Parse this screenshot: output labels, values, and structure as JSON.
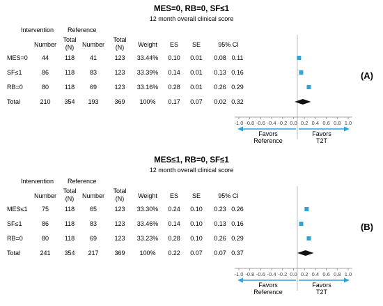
{
  "columns": {
    "intervention": "Intervention",
    "reference": "Reference",
    "number": "Number",
    "total_line1": "Total",
    "total_line2": "(N)",
    "weight": "Weight",
    "es": "ES",
    "se": "SE",
    "ci": "95% CI"
  },
  "axis_ticks": [
    "-1.0",
    "-0.8",
    "-0.6",
    "-0.4",
    "-0.2",
    "0.0",
    "0.2",
    "0.4",
    "0.6",
    "0.8",
    "1.0"
  ],
  "favors_left": [
    "Favors",
    "Reference"
  ],
  "favors_right": [
    "Favors",
    "T2T"
  ],
  "accent_color": "#2ea3d8",
  "chart_data": [
    {
      "type": "forest",
      "panel_label": "(A)",
      "title": "MES=0, RB=0, SF≤1",
      "subtitle": "12 month overall clinical score",
      "xlim": [
        -1.0,
        1.0
      ],
      "rows": [
        {
          "label": "MES=0",
          "int_n": "44",
          "int_total": "118",
          "ref_n": "41",
          "ref_total": "123",
          "weight": "33.44%",
          "es": "0.10",
          "se": "0.01",
          "ci_lo": "0.08",
          "ci_hi": "0.11",
          "es_val": 0.1,
          "lo_val": 0.08,
          "hi_val": 0.11
        },
        {
          "label": "SF≤1",
          "int_n": "86",
          "int_total": "118",
          "ref_n": "83",
          "ref_total": "123",
          "weight": "33.39%",
          "es": "0.14",
          "se": "0.01",
          "ci_lo": "0.13",
          "ci_hi": "0.16",
          "es_val": 0.14,
          "lo_val": 0.13,
          "hi_val": 0.16
        },
        {
          "label": "RB=0",
          "int_n": "80",
          "int_total": "118",
          "ref_n": "69",
          "ref_total": "123",
          "weight": "33.16%",
          "es": "0.28",
          "se": "0.01",
          "ci_lo": "0.26",
          "ci_hi": "0.29",
          "es_val": 0.28,
          "lo_val": 0.26,
          "hi_val": 0.29
        }
      ],
      "total": {
        "label": "Total",
        "int_n": "210",
        "int_total": "354",
        "ref_n": "193",
        "ref_total": "369",
        "weight": "100%",
        "es": "0.17",
        "se": "0.07",
        "ci_lo": "0.02",
        "ci_hi": "0.32",
        "es_val": 0.17,
        "lo_val": 0.02,
        "hi_val": 0.32
      }
    },
    {
      "type": "forest",
      "panel_label": "(B)",
      "title": "MES≤1, RB=0, SF≤1",
      "subtitle": "12 month overall clinical score",
      "xlim": [
        -1.0,
        1.0
      ],
      "rows": [
        {
          "label": "MES≤1",
          "int_n": "75",
          "int_total": "118",
          "ref_n": "65",
          "ref_total": "123",
          "weight": "33.30%",
          "es": "0.24",
          "se": "0.10",
          "ci_lo": "0.23",
          "ci_hi": "0.26",
          "es_val": 0.24,
          "lo_val": 0.23,
          "hi_val": 0.26
        },
        {
          "label": "SF≤1",
          "int_n": "86",
          "int_total": "118",
          "ref_n": "83",
          "ref_total": "123",
          "weight": "33.46%",
          "es": "0.14",
          "se": "0.10",
          "ci_lo": "0.13",
          "ci_hi": "0.16",
          "es_val": 0.14,
          "lo_val": 0.13,
          "hi_val": 0.16
        },
        {
          "label": "RB=0",
          "int_n": "80",
          "int_total": "118",
          "ref_n": "69",
          "ref_total": "123",
          "weight": "33.23%",
          "es": "0.28",
          "se": "0.10",
          "ci_lo": "0.26",
          "ci_hi": "0.29",
          "es_val": 0.28,
          "lo_val": 0.26,
          "hi_val": 0.29
        }
      ],
      "total": {
        "label": "Total",
        "int_n": "241",
        "int_total": "354",
        "ref_n": "217",
        "ref_total": "369",
        "weight": "100%",
        "es": "0.22",
        "se": "0.07",
        "ci_lo": "0.07",
        "ci_hi": "0.37",
        "es_val": 0.22,
        "lo_val": 0.07,
        "hi_val": 0.37
      }
    }
  ]
}
